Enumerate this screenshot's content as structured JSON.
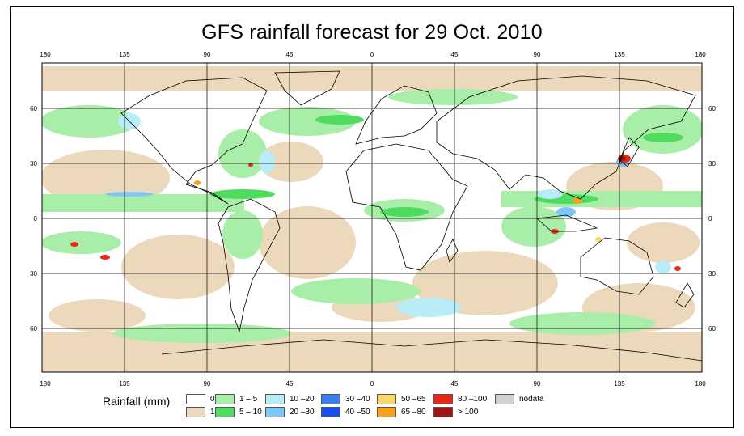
{
  "title": "GFS rainfall forecast for 29 Oct. 2010",
  "axes": {
    "lon_ticks": [
      "180",
      "135",
      "90",
      "45",
      "0",
      "45",
      "90",
      "135",
      "180"
    ],
    "lat_ticks": [
      "60",
      "30",
      "0",
      "30",
      "60"
    ]
  },
  "legend": {
    "title": "Rainfall (mm)",
    "items": [
      {
        "label": "0",
        "color": "#ffffff"
      },
      {
        "label": "1",
        "color": "#ecd8bb"
      },
      {
        "label": "1 – 5",
        "color": "#a8eea8"
      },
      {
        "label": "5 – 10",
        "color": "#4fdc5e"
      },
      {
        "label": "10 –20",
        "color": "#b8ecf6"
      },
      {
        "label": "20 –30",
        "color": "#7cc6f8"
      },
      {
        "label": "30 –40",
        "color": "#3a7ef2"
      },
      {
        "label": "40 –50",
        "color": "#1a4ee8"
      },
      {
        "label": "50 –65",
        "color": "#f8d86a"
      },
      {
        "label": "65 –80",
        "color": "#f4a21e"
      },
      {
        "label": "80 –100",
        "color": "#e82812"
      },
      {
        "label": "> 100",
        "color": "#a01414"
      },
      {
        "label": "nodata",
        "color": "#d2d2d2"
      }
    ]
  }
}
